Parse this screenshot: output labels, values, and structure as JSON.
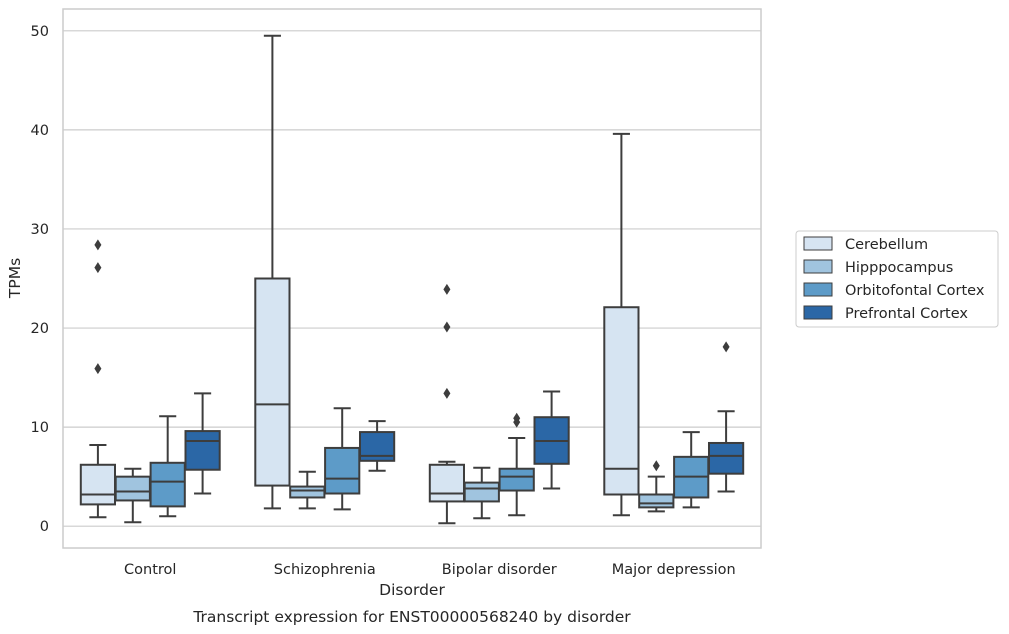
{
  "chart_data": {
    "type": "box",
    "xlabel": "Disorder",
    "ylabel": "TPMs",
    "caption": "Transcript expression for ENST00000568240 by disorder",
    "ylim": [
      -2.2,
      52.2
    ],
    "yticks": [
      0,
      10,
      20,
      30,
      40,
      50
    ],
    "grid": true,
    "legend_position": "right",
    "categories": [
      "Control",
      "Schizophrenia",
      "Bipolar disorder",
      "Major depression"
    ],
    "series": [
      {
        "name": "Cerebellum",
        "color": "#d6e4f2",
        "boxes": [
          {
            "whislo": 0.9,
            "q1": 2.2,
            "med": 3.2,
            "q3": 6.2,
            "whishi": 8.2,
            "fliers": [
              15.9,
              26.1,
              28.4
            ]
          },
          {
            "whislo": 1.8,
            "q1": 4.1,
            "med": 12.3,
            "q3": 25.0,
            "whishi": 49.5,
            "fliers": []
          },
          {
            "whislo": 0.3,
            "q1": 2.5,
            "med": 3.3,
            "q3": 6.2,
            "whishi": 6.5,
            "fliers": [
              13.4,
              20.1,
              23.9
            ]
          },
          {
            "whislo": 1.1,
            "q1": 3.2,
            "med": 5.8,
            "q3": 22.1,
            "whishi": 39.6,
            "fliers": []
          }
        ]
      },
      {
        "name": "Hipppocampus",
        "color": "#a0c4df",
        "boxes": [
          {
            "whislo": 0.4,
            "q1": 2.6,
            "med": 3.5,
            "q3": 5.0,
            "whishi": 5.8,
            "fliers": []
          },
          {
            "whislo": 1.8,
            "q1": 2.9,
            "med": 3.6,
            "q3": 4.0,
            "whishi": 5.5,
            "fliers": []
          },
          {
            "whislo": 0.8,
            "q1": 2.5,
            "med": 3.8,
            "q3": 4.4,
            "whishi": 5.9,
            "fliers": []
          },
          {
            "whislo": 1.5,
            "q1": 1.9,
            "med": 2.3,
            "q3": 3.2,
            "whishi": 5.0,
            "fliers": [
              6.1
            ]
          }
        ]
      },
      {
        "name": "Orbitofontal Cortex",
        "color": "#5d9bc8",
        "boxes": [
          {
            "whislo": 1.0,
            "q1": 2.0,
            "med": 4.5,
            "q3": 6.4,
            "whishi": 11.1,
            "fliers": []
          },
          {
            "whislo": 1.7,
            "q1": 3.3,
            "med": 4.8,
            "q3": 7.9,
            "whishi": 11.9,
            "fliers": []
          },
          {
            "whislo": 1.1,
            "q1": 3.6,
            "med": 5.0,
            "q3": 5.8,
            "whishi": 8.9,
            "fliers": [
              10.5,
              10.9
            ]
          },
          {
            "whislo": 1.9,
            "q1": 2.9,
            "med": 5.0,
            "q3": 7.0,
            "whishi": 9.5,
            "fliers": []
          }
        ]
      },
      {
        "name": "Prefrontal Cortex",
        "color": "#2b67a6",
        "boxes": [
          {
            "whislo": 3.3,
            "q1": 5.7,
            "med": 8.6,
            "q3": 9.6,
            "whishi": 13.4,
            "fliers": []
          },
          {
            "whislo": 5.6,
            "q1": 6.6,
            "med": 7.1,
            "q3": 9.5,
            "whishi": 10.6,
            "fliers": []
          },
          {
            "whislo": 3.8,
            "q1": 6.3,
            "med": 8.6,
            "q3": 11.0,
            "whishi": 13.6,
            "fliers": []
          },
          {
            "whislo": 3.5,
            "q1": 5.3,
            "med": 7.1,
            "q3": 8.4,
            "whishi": 11.6,
            "fliers": [
              18.1
            ]
          }
        ]
      }
    ]
  }
}
